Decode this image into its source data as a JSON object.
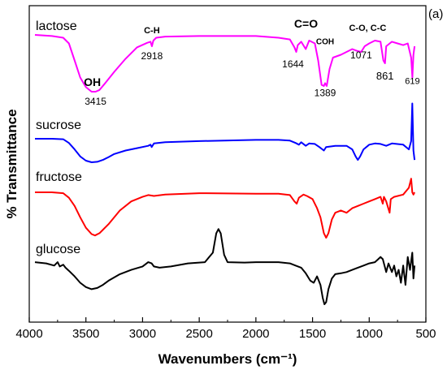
{
  "chart_data": {
    "type": "line",
    "panel_label": "(a)",
    "xlabel": "Wavenumbers (cm⁻¹)",
    "ylabel": "% Transmittance",
    "xlim": [
      4000,
      500
    ],
    "x_reversed": true,
    "grid": false,
    "x_ticks": [
      4000,
      3500,
      3000,
      2500,
      2000,
      1500,
      1000,
      500
    ],
    "series": [
      {
        "name": "lactose",
        "color": "#ff00ff",
        "points": [
          [
            3950,
            0.0
          ],
          [
            3800,
            0.02
          ],
          [
            3700,
            0.05
          ],
          [
            3650,
            0.15
          ],
          [
            3600,
            0.45
          ],
          [
            3550,
            0.75
          ],
          [
            3500,
            0.92
          ],
          [
            3450,
            1.0
          ],
          [
            3415,
            1.0
          ],
          [
            3380,
            0.97
          ],
          [
            3330,
            0.85
          ],
          [
            3250,
            0.65
          ],
          [
            3150,
            0.42
          ],
          [
            3050,
            0.22
          ],
          [
            2960,
            0.14
          ],
          [
            2930,
            0.12
          ],
          [
            2918,
            0.2
          ],
          [
            2905,
            0.1
          ],
          [
            2880,
            0.05
          ],
          [
            2800,
            0.03
          ],
          [
            2500,
            0.02
          ],
          [
            2000,
            0.02
          ],
          [
            1800,
            0.05
          ],
          [
            1700,
            0.08
          ],
          [
            1660,
            0.22
          ],
          [
            1644,
            0.3
          ],
          [
            1630,
            0.18
          ],
          [
            1600,
            0.12
          ],
          [
            1560,
            0.25
          ],
          [
            1530,
            0.1
          ],
          [
            1480,
            0.15
          ],
          [
            1450,
            0.45
          ],
          [
            1420,
            0.88
          ],
          [
            1400,
            0.9
          ],
          [
            1389,
            0.85
          ],
          [
            1375,
            0.9
          ],
          [
            1350,
            0.6
          ],
          [
            1320,
            0.4
          ],
          [
            1250,
            0.35
          ],
          [
            1200,
            0.3
          ],
          [
            1150,
            0.25
          ],
          [
            1110,
            0.28
          ],
          [
            1071,
            0.3
          ],
          [
            1040,
            0.2
          ],
          [
            1000,
            0.15
          ],
          [
            950,
            0.1
          ],
          [
            900,
            0.12
          ],
          [
            875,
            0.45
          ],
          [
            861,
            0.5
          ],
          [
            850,
            0.2
          ],
          [
            800,
            0.12
          ],
          [
            750,
            0.15
          ],
          [
            700,
            0.18
          ],
          [
            660,
            0.15
          ],
          [
            630,
            0.4
          ],
          [
            619,
            0.75
          ],
          [
            610,
            0.35
          ],
          [
            600,
            0.2
          ]
        ]
      },
      {
        "name": "sucrose",
        "color": "#0000ff",
        "points": [
          [
            3950,
            0.0
          ],
          [
            3800,
            0.0
          ],
          [
            3700,
            0.02
          ],
          [
            3650,
            0.18
          ],
          [
            3600,
            0.45
          ],
          [
            3550,
            0.75
          ],
          [
            3500,
            0.93
          ],
          [
            3450,
            1.0
          ],
          [
            3400,
            0.98
          ],
          [
            3350,
            0.9
          ],
          [
            3300,
            0.78
          ],
          [
            3250,
            0.65
          ],
          [
            3150,
            0.5
          ],
          [
            3050,
            0.4
          ],
          [
            2950,
            0.3
          ],
          [
            2930,
            0.25
          ],
          [
            2920,
            0.35
          ],
          [
            2900,
            0.2
          ],
          [
            2800,
            0.15
          ],
          [
            2500,
            0.1
          ],
          [
            2000,
            0.05
          ],
          [
            1800,
            0.05
          ],
          [
            1700,
            0.08
          ],
          [
            1650,
            0.18
          ],
          [
            1620,
            0.25
          ],
          [
            1600,
            0.15
          ],
          [
            1560,
            0.3
          ],
          [
            1530,
            0.2
          ],
          [
            1480,
            0.22
          ],
          [
            1440,
            0.35
          ],
          [
            1400,
            0.5
          ],
          [
            1380,
            0.35
          ],
          [
            1300,
            0.3
          ],
          [
            1200,
            0.3
          ],
          [
            1150,
            0.45
          ],
          [
            1120,
            0.75
          ],
          [
            1100,
            0.9
          ],
          [
            1080,
            0.75
          ],
          [
            1050,
            0.45
          ],
          [
            1000,
            0.25
          ],
          [
            950,
            0.2
          ],
          [
            900,
            0.22
          ],
          [
            850,
            0.3
          ],
          [
            800,
            0.2
          ],
          [
            700,
            0.25
          ],
          [
            650,
            0.45
          ],
          [
            630,
            0.1
          ],
          [
            620,
            -1.5
          ],
          [
            610,
            0.5
          ],
          [
            600,
            0.9
          ]
        ]
      },
      {
        "name": "fructose",
        "color": "#ff0000",
        "points": [
          [
            3950,
            0.0
          ],
          [
            3800,
            0.0
          ],
          [
            3700,
            0.02
          ],
          [
            3650,
            0.12
          ],
          [
            3600,
            0.3
          ],
          [
            3550,
            0.55
          ],
          [
            3500,
            0.78
          ],
          [
            3450,
            0.92
          ],
          [
            3420,
            0.95
          ],
          [
            3380,
            0.9
          ],
          [
            3300,
            0.7
          ],
          [
            3200,
            0.4
          ],
          [
            3100,
            0.2
          ],
          [
            3000,
            0.1
          ],
          [
            2950,
            0.06
          ],
          [
            2900,
            0.08
          ],
          [
            2800,
            0.05
          ],
          [
            2500,
            0.02
          ],
          [
            2000,
            0.03
          ],
          [
            1800,
            0.03
          ],
          [
            1700,
            0.06
          ],
          [
            1660,
            0.2
          ],
          [
            1640,
            0.25
          ],
          [
            1620,
            0.12
          ],
          [
            1580,
            0.05
          ],
          [
            1550,
            0.08
          ],
          [
            1500,
            0.15
          ],
          [
            1460,
            0.35
          ],
          [
            1430,
            0.55
          ],
          [
            1400,
            0.9
          ],
          [
            1380,
            1.0
          ],
          [
            1360,
            0.9
          ],
          [
            1330,
            0.6
          ],
          [
            1300,
            0.45
          ],
          [
            1250,
            0.4
          ],
          [
            1200,
            0.45
          ],
          [
            1150,
            0.35
          ],
          [
            1100,
            0.3
          ],
          [
            1050,
            0.25
          ],
          [
            1000,
            0.2
          ],
          [
            950,
            0.15
          ],
          [
            900,
            0.1
          ],
          [
            880,
            0.25
          ],
          [
            870,
            0.1
          ],
          [
            850,
            0.2
          ],
          [
            820,
            0.45
          ],
          [
            810,
            0.15
          ],
          [
            780,
            0.1
          ],
          [
            700,
            0.05
          ],
          [
            650,
            -0.1
          ],
          [
            630,
            -0.3
          ],
          [
            620,
            0.0
          ],
          [
            610,
            0.05
          ],
          [
            600,
            0.0
          ]
        ]
      },
      {
        "name": "glucose",
        "color": "#000000",
        "points": [
          [
            3950,
            0.02
          ],
          [
            3850,
            0.05
          ],
          [
            3780,
            0.1
          ],
          [
            3750,
            0.02
          ],
          [
            3730,
            0.12
          ],
          [
            3700,
            0.08
          ],
          [
            3680,
            0.15
          ],
          [
            3650,
            0.22
          ],
          [
            3600,
            0.35
          ],
          [
            3550,
            0.5
          ],
          [
            3500,
            0.6
          ],
          [
            3450,
            0.65
          ],
          [
            3400,
            0.62
          ],
          [
            3350,
            0.55
          ],
          [
            3300,
            0.45
          ],
          [
            3200,
            0.3
          ],
          [
            3100,
            0.2
          ],
          [
            3000,
            0.12
          ],
          [
            2950,
            0.02
          ],
          [
            2920,
            0.05
          ],
          [
            2900,
            0.12
          ],
          [
            2850,
            0.15
          ],
          [
            2750,
            0.12
          ],
          [
            2600,
            0.05
          ],
          [
            2450,
            0.02
          ],
          [
            2380,
            -0.2
          ],
          [
            2350,
            -0.65
          ],
          [
            2330,
            -0.75
          ],
          [
            2310,
            -0.65
          ],
          [
            2280,
            -0.15
          ],
          [
            2250,
            0.02
          ],
          [
            2100,
            0.03
          ],
          [
            2000,
            0.02
          ],
          [
            1800,
            0.02
          ],
          [
            1700,
            0.05
          ],
          [
            1650,
            0.1
          ],
          [
            1600,
            0.15
          ],
          [
            1560,
            0.28
          ],
          [
            1520,
            0.45
          ],
          [
            1490,
            0.5
          ],
          [
            1460,
            0.35
          ],
          [
            1430,
            0.55
          ],
          [
            1410,
            0.85
          ],
          [
            1395,
            1.0
          ],
          [
            1380,
            0.95
          ],
          [
            1360,
            0.65
          ],
          [
            1330,
            0.4
          ],
          [
            1300,
            0.3
          ],
          [
            1250,
            0.28
          ],
          [
            1200,
            0.25
          ],
          [
            1150,
            0.2
          ],
          [
            1100,
            0.15
          ],
          [
            1050,
            0.1
          ],
          [
            1000,
            0.05
          ],
          [
            950,
            0.02
          ],
          [
            920,
            -0.05
          ],
          [
            900,
            -0.1
          ],
          [
            880,
            -0.05
          ],
          [
            850,
            0.25
          ],
          [
            830,
            0.05
          ],
          [
            800,
            0.25
          ],
          [
            780,
            0.1
          ],
          [
            760,
            0.35
          ],
          [
            740,
            0.2
          ],
          [
            720,
            0.5
          ],
          [
            700,
            0.1
          ],
          [
            680,
            0.55
          ],
          [
            660,
            -0.1
          ],
          [
            640,
            0.2
          ],
          [
            620,
            -0.2
          ],
          [
            610,
            0.4
          ],
          [
            600,
            0.1
          ]
        ]
      }
    ],
    "annotations": [
      {
        "text": "C-H",
        "x": 2918,
        "series": "lactose",
        "bold": true
      },
      {
        "text": "2918",
        "x": 2918,
        "series": "lactose",
        "bold": false
      },
      {
        "text": "OH",
        "x": 3415,
        "series": "lactose",
        "bold": true
      },
      {
        "text": "3415",
        "x": 3415,
        "series": "lactose",
        "bold": false
      },
      {
        "text": "C=O",
        "x": 1644,
        "series": "lactose",
        "bold": true
      },
      {
        "text": "1644",
        "x": 1644,
        "series": "lactose",
        "bold": false
      },
      {
        "text": "COH",
        "x": 1389,
        "series": "lactose",
        "bold": true
      },
      {
        "text": "1389",
        "x": 1389,
        "series": "lactose",
        "bold": false
      },
      {
        "text": "C-O, C-C",
        "x": 1071,
        "series": "lactose",
        "bold": true
      },
      {
        "text": "1071",
        "x": 1071,
        "series": "lactose",
        "bold": false
      },
      {
        "text": "861",
        "x": 861,
        "series": "lactose",
        "bold": false
      },
      {
        "text": "619",
        "x": 619,
        "series": "lactose",
        "bold": false
      }
    ]
  }
}
